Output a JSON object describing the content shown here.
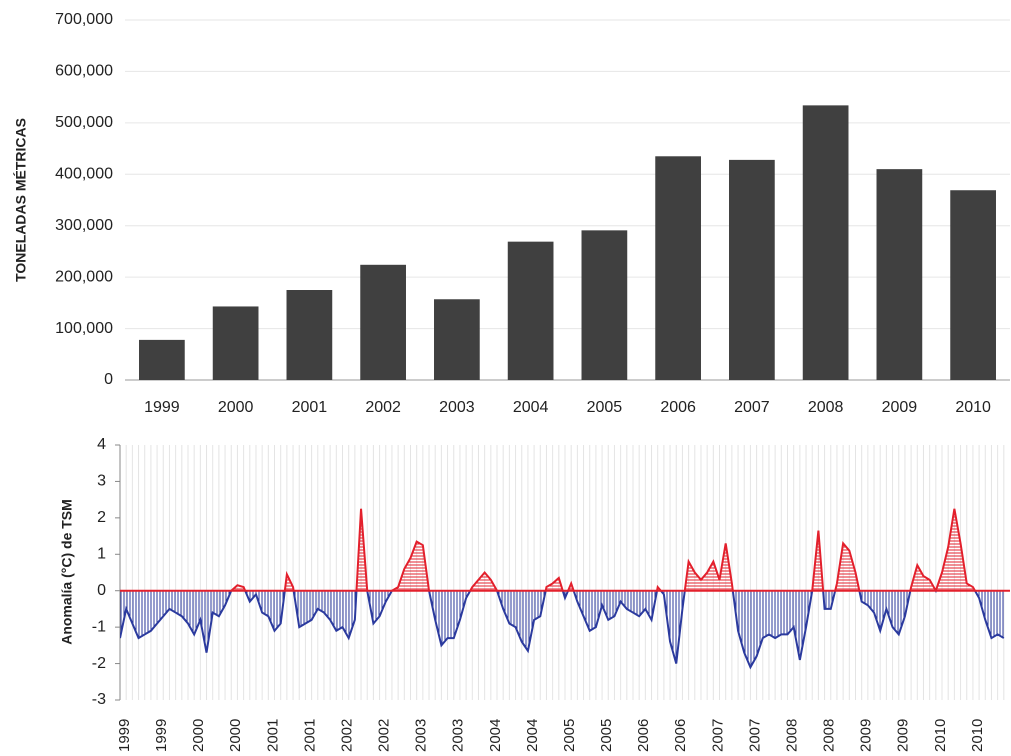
{
  "chart_data": [
    {
      "type": "bar",
      "ylabel": "TONELADAS MÉTRICAS",
      "categories": [
        "1999",
        "2000",
        "2001",
        "2002",
        "2003",
        "2004",
        "2005",
        "2006",
        "2007",
        "2008",
        "2009",
        "2010"
      ],
      "values": [
        78000,
        143000,
        175000,
        224000,
        157000,
        269000,
        291000,
        435000,
        428000,
        534000,
        410000,
        369000
      ],
      "color": "#404040",
      "ylim": [
        0,
        700000
      ],
      "yticks": [
        0,
        {
          "value": 100000,
          "label": "100,000"
        },
        {
          "value": 200000,
          "label": "200,000"
        },
        {
          "value": 300000,
          "label": "300,000"
        },
        {
          "value": 400000,
          "label": "400,000"
        },
        {
          "value": 500000,
          "label": "500,000"
        },
        {
          "value": 600000,
          "label": "600,000"
        },
        {
          "value": 700000,
          "label": "700,000"
        }
      ],
      "grid": true
    },
    {
      "type": "anomaly",
      "ylabel": "Anomalía (°C) de TSM",
      "categories": [
        "1999",
        null,
        null,
        null,
        null,
        null,
        "1999",
        null,
        null,
        null,
        null,
        null,
        "2000",
        null,
        null,
        null,
        null,
        null,
        "2000",
        null,
        null,
        null,
        null,
        null,
        "2001",
        null,
        null,
        null,
        null,
        null,
        "2001",
        null,
        null,
        null,
        null,
        null,
        "2002",
        null,
        null,
        null,
        null,
        null,
        "2002",
        null,
        null,
        null,
        null,
        null,
        "2003",
        null,
        null,
        null,
        null,
        null,
        "2003",
        null,
        null,
        null,
        null,
        null,
        "2004",
        null,
        null,
        null,
        null,
        null,
        "2004",
        null,
        null,
        null,
        null,
        null,
        "2005",
        null,
        null,
        null,
        null,
        null,
        "2005",
        null,
        null,
        null,
        null,
        null,
        "2006",
        null,
        null,
        null,
        null,
        null,
        "2006",
        null,
        null,
        null,
        null,
        null,
        "2007",
        null,
        null,
        null,
        null,
        null,
        "2007",
        null,
        null,
        null,
        null,
        null,
        "2008",
        null,
        null,
        null,
        null,
        null,
        "2008",
        null,
        null,
        null,
        null,
        null,
        "2009",
        null,
        null,
        null,
        null,
        null,
        "2009",
        null,
        null,
        null,
        null,
        null,
        "2010",
        null,
        null,
        null,
        null,
        null,
        "2010",
        null,
        null,
        null,
        null,
        null
      ],
      "values": [
        -1.3,
        -0.5,
        -0.9,
        -1.3,
        -1.2,
        -1.1,
        -0.9,
        -0.7,
        -0.5,
        -0.6,
        -0.7,
        -0.9,
        -1.2,
        -0.8,
        -1.7,
        -0.6,
        -0.7,
        -0.4,
        0.0,
        0.15,
        0.1,
        -0.3,
        -0.1,
        -0.6,
        -0.7,
        -1.1,
        -0.9,
        0.45,
        0.1,
        -1.0,
        -0.9,
        -0.8,
        -0.5,
        -0.6,
        -0.8,
        -1.1,
        -1.0,
        -1.3,
        -0.8,
        2.25,
        0.0,
        -0.9,
        -0.7,
        -0.3,
        0.0,
        0.1,
        0.6,
        0.9,
        1.35,
        1.25,
        0.0,
        -0.8,
        -1.5,
        -1.3,
        -1.3,
        -0.8,
        -0.2,
        0.1,
        0.3,
        0.5,
        0.3,
        0.0,
        -0.5,
        -0.9,
        -1.0,
        -1.4,
        -1.65,
        -0.8,
        -0.7,
        0.1,
        0.2,
        0.35,
        -0.2,
        0.2,
        -0.3,
        -0.7,
        -1.1,
        -1.0,
        -0.4,
        -0.8,
        -0.7,
        -0.3,
        -0.5,
        -0.6,
        -0.7,
        -0.5,
        -0.8,
        0.1,
        -0.1,
        -1.4,
        -2.0,
        -0.5,
        0.8,
        0.5,
        0.3,
        0.5,
        0.8,
        0.3,
        1.3,
        0.2,
        -1.1,
        -1.7,
        -2.1,
        -1.8,
        -1.3,
        -1.2,
        -1.3,
        -1.2,
        -1.2,
        -1.0,
        -1.9,
        -1.0,
        0.0,
        1.65,
        -0.5,
        -0.5,
        0.2,
        1.3,
        1.1,
        0.5,
        -0.3,
        -0.4,
        -0.6,
        -1.1,
        -0.5,
        -1.0,
        -1.2,
        -0.7,
        0.1,
        0.7,
        0.4,
        0.3,
        0.0,
        0.5,
        1.2,
        2.25,
        1.3,
        0.2,
        0.1,
        -0.2,
        -0.8,
        -1.3,
        -1.2,
        -1.3
      ],
      "positive_color": "#e3202c",
      "negative_color": "#2b3a9e",
      "ylim": [
        -3,
        4
      ],
      "yticks": [
        -3,
        -2,
        -1,
        0,
        1,
        2,
        3,
        4
      ],
      "grid": true
    }
  ]
}
